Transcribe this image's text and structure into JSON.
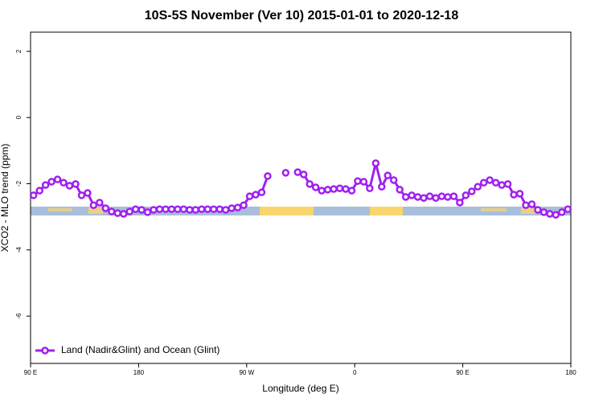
{
  "chart_data": {
    "type": "line",
    "title": "10S-5S November (Ver 10)   2015-01-01 to 2020-12-18",
    "xlabel": "Longitude (deg E)",
    "ylabel": "XCO2 - MLO trend (ppm)",
    "xlim": [
      90,
      540
    ],
    "xticks": [
      {
        "value": 90,
        "label": "90 E"
      },
      180,
      {
        "value": 270,
        "label": "90 W"
      },
      {
        "value": 360,
        "label": "0"
      },
      {
        "value": 450,
        "label": "90 E"
      },
      {
        "value": 540,
        "label": "180"
      }
    ],
    "ylim": [
      -7.43,
      2.58
    ],
    "yticks": [
      2,
      0,
      -2,
      -4,
      -6
    ],
    "legend": "bottom-left",
    "x": [
      92.5,
      97.5,
      102.5,
      107.5,
      112.5,
      117.5,
      122.5,
      127.5,
      132.5,
      137.5,
      142.5,
      147.5,
      152.5,
      157.5,
      162.5,
      167.5,
      172.5,
      177.5,
      182.5,
      187.5,
      192.5,
      197.5,
      202.5,
      207.5,
      212.5,
      217.5,
      222.5,
      227.5,
      232.5,
      237.5,
      242.5,
      247.5,
      252.5,
      257.5,
      262.5,
      267.5,
      272.5,
      277.5,
      282.5,
      287.5,
      292.5,
      297.5,
      302.5,
      307.5,
      312.5,
      317.5,
      322.5,
      327.5,
      332.5,
      337.5,
      342.5,
      347.5,
      352.5,
      357.5,
      362.5,
      367.5,
      372.5,
      377.5,
      382.5,
      387.5,
      392.5,
      397.5,
      402.5,
      407.5,
      412.5,
      417.5,
      422.5,
      427.5,
      432.5,
      437.5,
      442.5,
      447.5,
      452.5,
      457.5,
      462.5,
      467.5,
      472.5,
      477.5,
      482.5,
      487.5,
      492.5,
      497.5,
      502.5,
      507.5,
      512.5,
      517.5,
      522.5,
      527.5,
      532.5,
      537.5
    ],
    "series": [
      {
        "name": "Land (Nadir&Glint) and Ocean (Glint)",
        "color": "#a020f0",
        "values": [
          -2.35,
          -2.21,
          -2.04,
          -1.94,
          -1.87,
          -1.97,
          -2.06,
          -2.01,
          -2.35,
          -2.28,
          -2.65,
          -2.57,
          -2.74,
          -2.84,
          -2.89,
          -2.91,
          -2.84,
          -2.77,
          -2.79,
          -2.86,
          -2.79,
          -2.77,
          -2.77,
          -2.77,
          -2.77,
          -2.77,
          -2.79,
          -2.79,
          -2.77,
          -2.77,
          -2.77,
          -2.77,
          -2.79,
          -2.74,
          -2.72,
          -2.65,
          -2.38,
          -2.33,
          -2.26,
          -1.77,
          null,
          null,
          -1.67,
          null,
          -1.65,
          -1.72,
          -2.01,
          -2.11,
          -2.21,
          -2.18,
          -2.16,
          -2.14,
          -2.16,
          -2.21,
          -1.92,
          -1.94,
          -2.14,
          -1.38,
          -2.09,
          -1.75,
          -1.89,
          -2.18,
          -2.4,
          -2.35,
          -2.4,
          -2.43,
          -2.38,
          -2.43,
          -2.38,
          -2.4,
          -2.38,
          -2.57,
          -2.35,
          -2.23,
          -2.09,
          -1.97,
          -1.89,
          -1.97,
          -2.04,
          -2.01,
          -2.33,
          -2.3,
          -2.65,
          -2.62,
          -2.79,
          -2.86,
          -2.91,
          -2.94,
          -2.86,
          -2.77
        ]
      }
    ]
  }
}
